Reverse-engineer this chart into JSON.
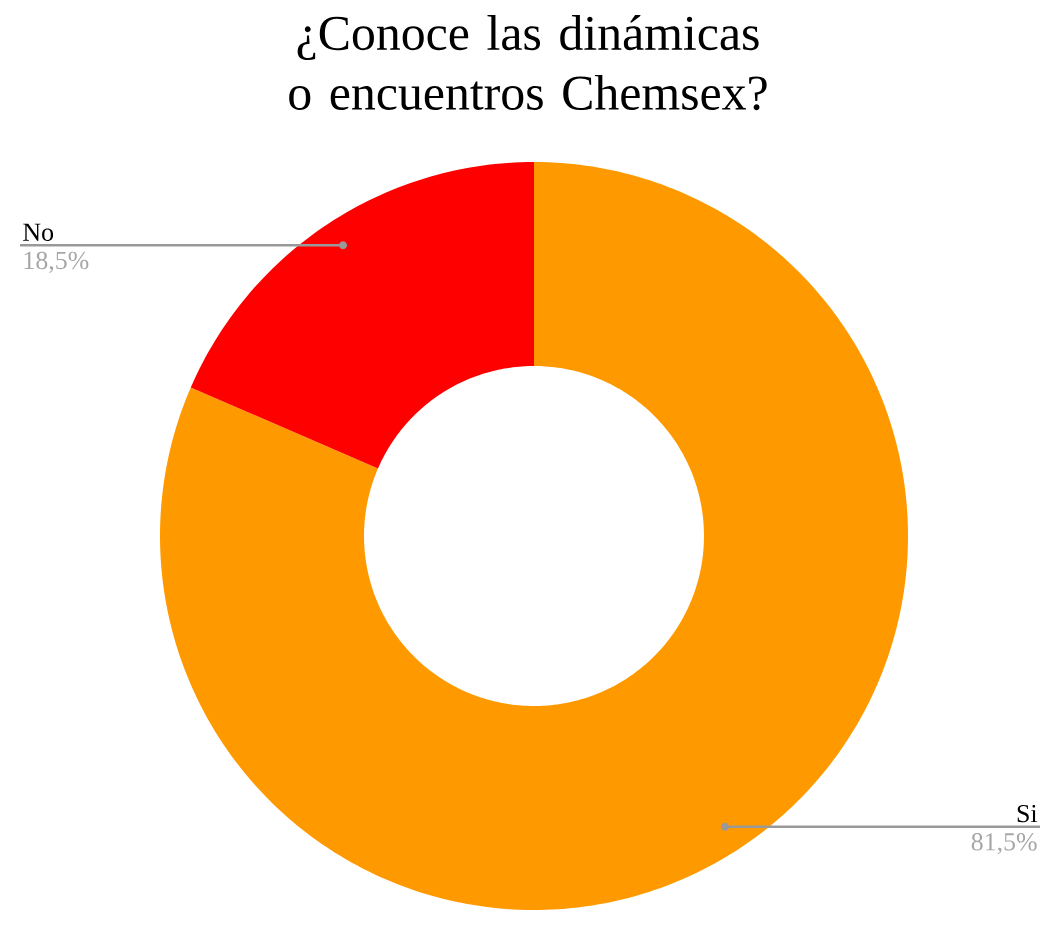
{
  "chart_data": {
    "type": "donut",
    "title": "¿Conoce las dinámicas o encuentros Chemsex?",
    "categories": [
      "Si",
      "No"
    ],
    "values": [
      81.5,
      18.5
    ],
    "colors": [
      "#ff9900",
      "#ff0000"
    ],
    "value_labels": [
      "81,5%",
      "18,5%"
    ]
  }
}
